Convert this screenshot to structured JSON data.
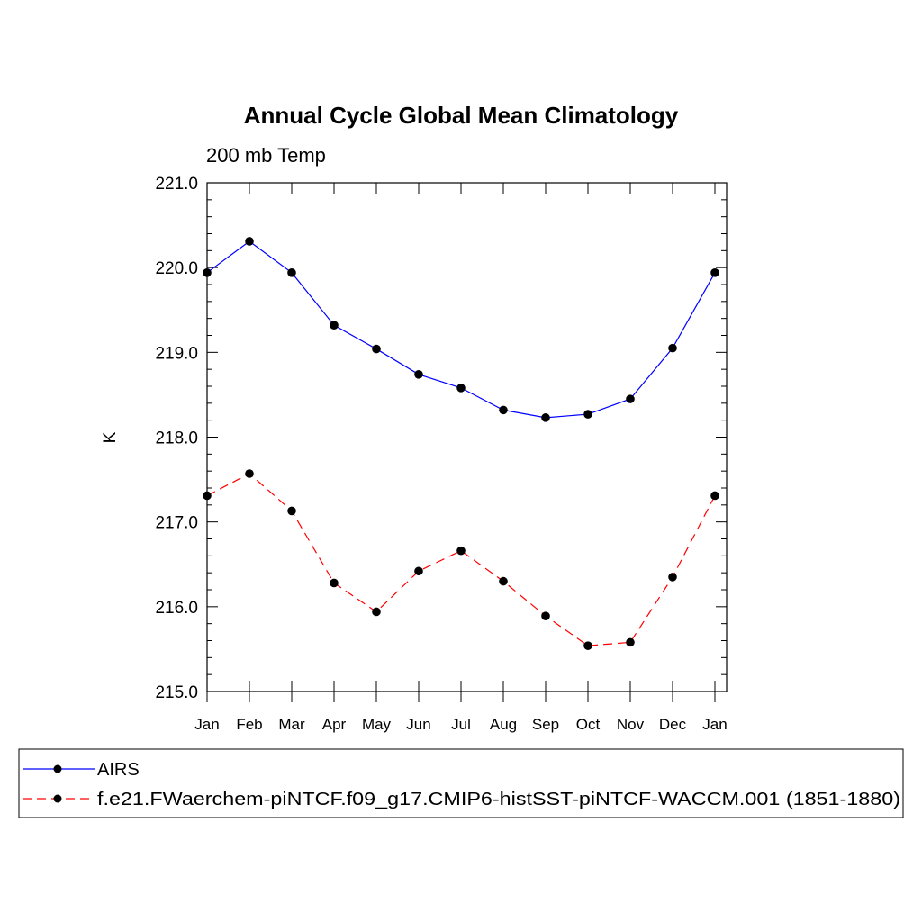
{
  "chart_data": {
    "type": "line",
    "title": "Annual Cycle Global Mean Climatology",
    "subtitle": "200 mb Temp",
    "xlabel": "",
    "ylabel": "K",
    "categories": [
      "Jan",
      "Feb",
      "Mar",
      "Apr",
      "May",
      "Jun",
      "Jul",
      "Aug",
      "Sep",
      "Oct",
      "Nov",
      "Dec",
      "Jan"
    ],
    "ylim": [
      215.0,
      221.0
    ],
    "yticks": [
      215.0,
      216.0,
      217.0,
      218.0,
      219.0,
      220.0,
      221.0
    ],
    "ytick_labels": [
      "215.0",
      "216.0",
      "217.0",
      "218.0",
      "219.0",
      "220.0",
      "221.0"
    ],
    "grid": false,
    "legend_position": "bottom",
    "series": [
      {
        "name": "AIRS",
        "color": "#0000ff",
        "dash": "solid",
        "values": [
          219.94,
          220.31,
          219.94,
          219.32,
          219.04,
          218.74,
          218.58,
          218.32,
          218.23,
          218.27,
          218.45,
          219.05,
          219.94
        ]
      },
      {
        "name": "f.e21.FWaerchem-piNTCF.f09_g17.CMIP6-histSST-piNTCF-WACCM.001 (1851-1880)",
        "color": "#ff0000",
        "dash": "dashed",
        "values": [
          217.31,
          217.57,
          217.13,
          216.28,
          215.94,
          216.42,
          216.66,
          216.3,
          215.89,
          215.54,
          215.58,
          216.35,
          217.31
        ]
      }
    ]
  }
}
